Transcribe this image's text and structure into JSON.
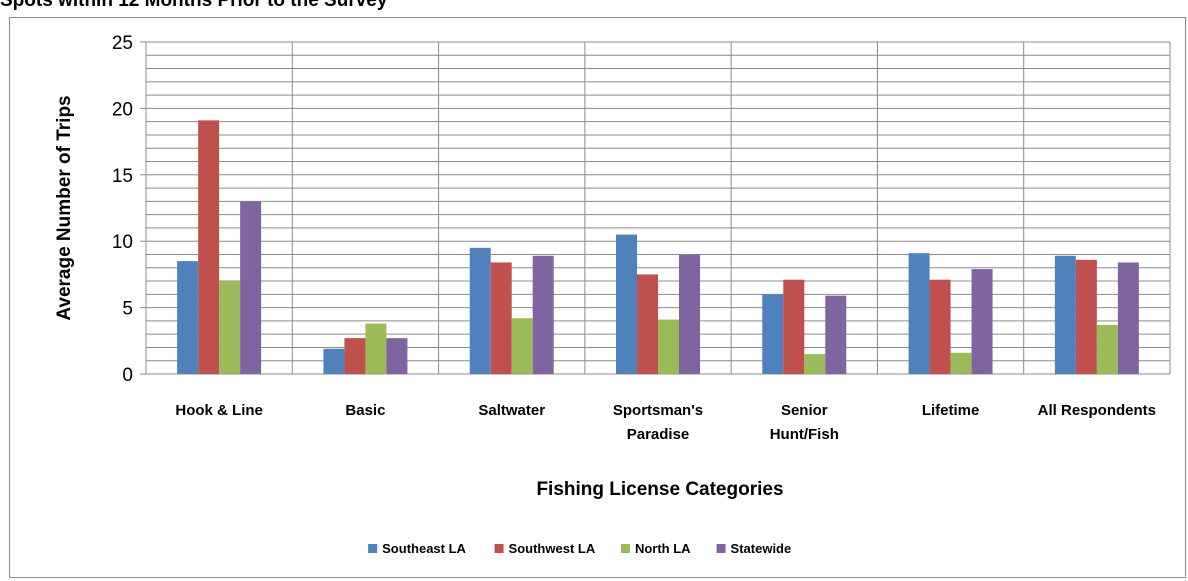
{
  "page_title": "Spots within 12 Months Prior to the Survey",
  "chart_data": {
    "type": "bar",
    "title": "Spots within 12 Months Prior to the Survey",
    "xlabel": "Fishing License Categories",
    "ylabel": "Average Number of Trips",
    "ylim": [
      0,
      25
    ],
    "yticks": [
      "0",
      "5",
      "10",
      "15",
      "20",
      "25"
    ],
    "ytick_values": [
      0,
      5,
      10,
      15,
      20,
      25
    ],
    "minor_grid_step": 1,
    "grid": true,
    "legend_position": "bottom",
    "categories": [
      [
        "Hook & Line"
      ],
      [
        "Basic"
      ],
      [
        "Saltwater"
      ],
      [
        "Sportsman's",
        "Paradise"
      ],
      [
        "Senior",
        "Hunt/Fish"
      ],
      [
        "Lifetime"
      ],
      [
        "All Respondents"
      ]
    ],
    "series": [
      {
        "name": "Southeast LA",
        "color": "#4f81bd",
        "values": [
          8.5,
          1.9,
          9.5,
          10.5,
          6.0,
          9.1,
          8.9
        ]
      },
      {
        "name": "Southwest LA",
        "color": "#c0504d",
        "values": [
          19.1,
          2.7,
          8.4,
          7.5,
          7.1,
          7.1,
          8.6
        ]
      },
      {
        "name": "North LA",
        "color": "#9bbb59",
        "values": [
          7.0,
          3.8,
          4.2,
          4.1,
          1.5,
          1.6,
          3.7
        ]
      },
      {
        "name": "Statewide",
        "color": "#8064a2",
        "values": [
          13.0,
          2.7,
          8.9,
          9.0,
          5.9,
          7.9,
          8.4
        ]
      }
    ]
  }
}
